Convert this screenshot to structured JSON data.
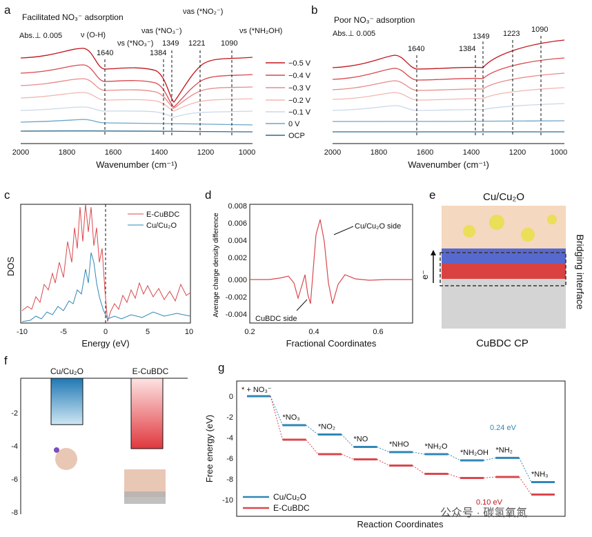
{
  "panels": {
    "a": {
      "letter": "a",
      "title": "Facilitated NO₃⁻ adsorption",
      "abs": "Abs.⊥ 0.005",
      "xlabel": "Wavenumber (cm⁻¹)",
      "xticks": [
        "2000",
        "1800",
        "1600",
        "1400",
        "1200",
        "1000"
      ],
      "band_labels": [
        "ν (O-H)",
        "νs (*NO₃⁻)",
        "νas (*NO₃⁻)",
        "νas (*NO₂⁻)",
        "νs (*NH₂OH)"
      ],
      "peaks": [
        "1640",
        "1384",
        "1349",
        "1221",
        "1090"
      ]
    },
    "b": {
      "letter": "b",
      "title": "Poor NO₃⁻ adsorption",
      "abs": "Abs.⊥ 0.005",
      "xlabel": "Wavenumber (cm⁻¹)",
      "xticks": [
        "2000",
        "1800",
        "1600",
        "1400",
        "1200",
        "1000"
      ],
      "peaks": [
        "1640",
        "1384",
        "1349",
        "1223",
        "1090"
      ]
    },
    "legend_ab": {
      "entries": [
        "−0.5 V",
        "−0.4 V",
        "−0.3 V",
        "−0.2 V",
        "−0.1 V",
        "0 V",
        "OCP"
      ],
      "colors": [
        "#c0141a",
        "#d9474c",
        "#e88a88",
        "#f0b7b2",
        "#c9d8ea",
        "#6aa6c8",
        "#2b6a8e"
      ]
    },
    "c": {
      "letter": "c",
      "ylabel": "DOS",
      "xlabel": "Energy (eV)",
      "xticks": [
        "-10",
        "-5",
        "0",
        "5",
        "10"
      ],
      "legend": [
        "E-CuBDC",
        "Cu/Cu₂O"
      ]
    },
    "d": {
      "letter": "d",
      "ylabel": "Average charge density difference",
      "xlabel": "Fractional Coordinates",
      "xticks": [
        "0.2",
        "0.4",
        "0.6"
      ],
      "yticks": [
        "0.008",
        "0.006",
        "0.004",
        "0.002",
        "0.000",
        "-0.002",
        "-0.004"
      ],
      "annot_top": "Cu/Cu₂O side",
      "annot_bottom": "CuBDC side"
    },
    "e": {
      "letter": "e",
      "top_label": "Cu/Cu₂O",
      "bottom_label": "CuBDC CP",
      "side_label": "Bridging interface",
      "electron": "e⁻"
    },
    "f": {
      "letter": "f",
      "yticks": [
        "-2",
        "-4",
        "-6",
        "-8"
      ],
      "labels": [
        "Cu/Cu₂O",
        "E-CuBDC"
      ]
    },
    "g": {
      "letter": "g",
      "ylabel": "Free energy (eV)",
      "xlabel": "Reaction Coordinates",
      "yticks": [
        "0",
        "-2",
        "-4",
        "-6",
        "-8",
        "-10"
      ],
      "steps": [
        "* + NO₃⁻",
        "*NO₃",
        "*NO₂",
        "*NO",
        "*NHO",
        "*NH₂O",
        "*NH₂OH",
        "*NH₂",
        "*NH₃"
      ],
      "annot_blue": "0.24 eV",
      "annot_red": "0.10 eV",
      "legend": [
        "Cu/Cu₂O",
        "E-CuBDC"
      ]
    }
  },
  "watermark": "公众号 · 碳氢氧氮",
  "colors": {
    "red": "#d9474c",
    "blue": "#2f86b5",
    "darkred": "#c0141a"
  },
  "chart_data": [
    {
      "type": "line",
      "id": "g",
      "categories": [
        "* + NO₃⁻",
        "*NO₃",
        "*NO₂",
        "*NO",
        "*NHO",
        "*NH₂O",
        "*NH₂OH",
        "*NH₂",
        "*NH₃"
      ],
      "series": [
        {
          "name": "Cu/Cu₂O",
          "values": [
            0,
            -2.8,
            -3.7,
            -4.9,
            -5.4,
            -5.6,
            -6.2,
            -5.96,
            -8.3
          ]
        },
        {
          "name": "E-CuBDC",
          "values": [
            0,
            -4.2,
            -5.6,
            -6.1,
            -6.7,
            -7.5,
            -7.9,
            -7.8,
            -9.5
          ]
        }
      ],
      "ylabel": "Free energy (eV)",
      "xlabel": "Reaction Coordinates",
      "ylim": [
        -10.5,
        1
      ]
    },
    {
      "type": "bar",
      "id": "f",
      "categories": [
        "Cu/Cu₂O",
        "E-CuBDC"
      ],
      "values": [
        -2.8,
        -4.25
      ],
      "ylim": [
        -8,
        0
      ]
    }
  ]
}
